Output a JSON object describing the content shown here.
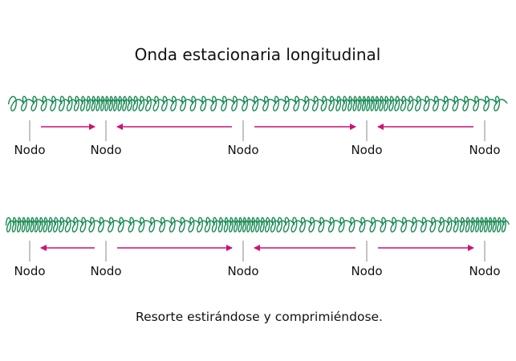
{
  "title": "Onda estacionaria longitudinal",
  "caption": "Resorte estirándose y comprimiéndose.",
  "colors": {
    "spring": "#1a8a55",
    "arrow": "#cc1177",
    "tick": "#888888",
    "text": "#111111"
  },
  "rows": [
    {
      "node_labels": [
        "Nodo",
        "Nodo",
        "Nodo",
        "Nodo",
        "Nodo"
      ],
      "arrows": [
        {
          "from_node": 0,
          "to_node": 1,
          "direction": "right"
        },
        {
          "from_node": 1,
          "to_node": 2,
          "direction": "left"
        },
        {
          "from_node": 2,
          "to_node": 3,
          "direction": "right"
        },
        {
          "from_node": 3,
          "to_node": 4,
          "direction": "left"
        }
      ],
      "spring_pattern": "compressed-at-nodes-1-3, stretched-at-nodes-0-2-4"
    },
    {
      "node_labels": [
        "Nodo",
        "Nodo",
        "Nodo",
        "Nodo",
        "Nodo"
      ],
      "arrows": [
        {
          "from_node": 0,
          "to_node": 1,
          "direction": "left"
        },
        {
          "from_node": 1,
          "to_node": 2,
          "direction": "right"
        },
        {
          "from_node": 2,
          "to_node": 3,
          "direction": "left"
        },
        {
          "from_node": 3,
          "to_node": 4,
          "direction": "right"
        }
      ],
      "spring_pattern": "stretched-at-nodes-1-3, compressed-at-nodes-0-2-4"
    }
  ]
}
